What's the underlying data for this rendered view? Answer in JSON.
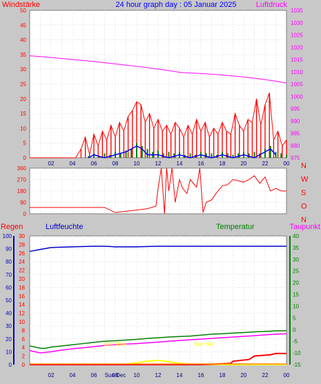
{
  "title": "24 hour graph day : 05 Januar 2025",
  "colors": {
    "bg": "#c8c8c8",
    "plot_bg": "#ffffff",
    "wind": "#ff0000",
    "gust": "#ff0000",
    "wind_avg": "#0000ff",
    "wind_green": "#008000",
    "pressure": "#ff00ff",
    "direction": "#ff0000",
    "rain": "#ff0000",
    "humidity": "#0000cc",
    "temperature": "#008000",
    "dewpoint": "#ff00ff",
    "solar": "#ffff00",
    "sun_label": "#ffff00"
  },
  "hour_labels": [
    "02",
    "04",
    "06",
    "08",
    "10",
    "12",
    "14",
    "16",
    "18",
    "20",
    "22",
    "00"
  ],
  "chart_data": [
    {
      "type": "line",
      "title": "24 hour graph day : 05 Januar 2025",
      "left_label": "Windstärke",
      "right_label": "Luftdruck",
      "y_left_ticks": [
        "0",
        "5",
        "10",
        "15",
        "20",
        "25",
        "30",
        "35",
        "40",
        "45",
        "50"
      ],
      "y_left_lim": [
        0,
        50
      ],
      "y_right_ticks": [
        "975",
        "980",
        "985",
        "990",
        "995",
        "1000",
        "1005",
        "1010",
        "1015",
        "1020",
        "1025",
        "1030",
        "1035"
      ],
      "y_right_lim": [
        975,
        1035
      ],
      "x_hours": [
        0,
        24
      ],
      "series": [
        {
          "name": "Luftdruck",
          "axis": "right",
          "x": [
            0,
            1,
            2,
            3,
            4,
            5,
            6,
            7,
            8,
            9,
            10,
            11,
            12,
            13,
            14,
            15,
            16,
            17,
            18,
            19,
            20,
            21,
            22,
            23,
            24
          ],
          "y": [
            1016.5,
            1016.2,
            1015.8,
            1015.4,
            1015.0,
            1014.6,
            1014.2,
            1013.7,
            1013.2,
            1012.7,
            1012.2,
            1011.7,
            1011.1,
            1010.5,
            1009.8,
            1009.5,
            1009.3,
            1009.0,
            1008.7,
            1008.3,
            1007.9,
            1007.4,
            1006.8,
            1006.2,
            1005.4
          ]
        },
        {
          "name": "Windböen",
          "axis": "left",
          "x": [
            0,
            4.3,
            4.8,
            5.2,
            5.6,
            6.0,
            6.4,
            6.8,
            7.2,
            7.6,
            8.0,
            8.4,
            8.8,
            9.2,
            9.6,
            10.0,
            10.4,
            10.8,
            11.2,
            11.6,
            12.0,
            12.4,
            12.8,
            13.2,
            13.6,
            14.0,
            14.4,
            14.8,
            15.2,
            15.6,
            16.0,
            16.4,
            16.8,
            17.2,
            17.6,
            18.0,
            18.4,
            18.8,
            19.2,
            19.6,
            20.0,
            20.4,
            20.8,
            21.2,
            21.6,
            22.0,
            22.4,
            22.8,
            23.2,
            23.6,
            24.0
          ],
          "y": [
            0,
            0,
            3,
            7,
            1,
            8,
            4,
            9,
            6,
            11,
            7,
            12,
            9,
            14,
            16,
            19,
            18,
            12,
            15,
            10,
            13,
            9,
            11,
            8,
            12,
            10,
            7,
            11,
            8,
            13,
            9,
            12,
            7,
            10,
            8,
            12,
            9,
            8,
            15,
            11,
            9,
            13,
            12,
            20,
            11,
            18,
            22,
            6,
            9,
            4,
            6
          ]
        },
        {
          "name": "Windstärke",
          "axis": "left",
          "x": [
            0,
            5.0,
            5.5,
            6.0,
            6.5,
            7.0,
            7.5,
            8.0,
            8.5,
            9.0,
            9.5,
            10.0,
            10.5,
            11.0,
            11.5,
            12.0,
            12.5,
            13.0,
            13.5,
            14.0,
            14.5,
            15.0,
            15.5,
            16.0,
            16.5,
            17.0,
            17.5,
            18.0,
            18.5,
            19.0,
            19.5,
            20.0,
            20.5,
            21.0,
            21.5,
            22.0,
            22.5,
            23.0,
            23.5,
            24.0
          ],
          "y": [
            0,
            0,
            0.5,
            1.5,
            0.5,
            1.5,
            1,
            2,
            1.5,
            2.5,
            3,
            5,
            4,
            3,
            2,
            2.5,
            1.5,
            2,
            1.5,
            2,
            1,
            1.5,
            1,
            2,
            1.5,
            1.5,
            1,
            2,
            1.5,
            1,
            1.5,
            2,
            1.5,
            2,
            1.5,
            3,
            4,
            2,
            1.5,
            1
          ]
        },
        {
          "name": "Windstärke (Mittel)",
          "axis": "left",
          "x": [
            5.5,
            6.0,
            7.0,
            8.0,
            9.0,
            9.5,
            10.0,
            10.5,
            11.0,
            12.0,
            13.0,
            14.0,
            15.0,
            16.0,
            17.0,
            18.0,
            19.0,
            20.0,
            21.0,
            22.0,
            22.5,
            23.0
          ],
          "y": [
            0,
            1,
            0,
            1,
            2,
            3,
            4,
            3,
            1,
            1,
            0,
            1,
            0,
            1,
            0,
            1,
            0,
            1,
            0,
            2,
            3,
            1
          ]
        }
      ]
    },
    {
      "type": "line",
      "title": "",
      "right_label": "N W S O N",
      "y_left_ticks": [
        "0",
        "90",
        "180",
        "270",
        "360"
      ],
      "y_left_lim": [
        0,
        360
      ],
      "y_right_ticks": [
        "N",
        "W",
        "S",
        "O",
        "N"
      ],
      "x_hours": [
        0,
        24
      ],
      "series": [
        {
          "name": "Windrichtung",
          "x": [
            0,
            7.0,
            8.0,
            9.0,
            10.0,
            11.0,
            11.8,
            12.0,
            12.3,
            12.6,
            12.8,
            13.0,
            13.3,
            13.6,
            14.0,
            14.3,
            14.7,
            15.0,
            15.3,
            15.6,
            15.9,
            16.2,
            16.5,
            17.0,
            17.5,
            18.0,
            18.5,
            19.0,
            19.5,
            20.0,
            20.5,
            21.0,
            21.5,
            22.0,
            22.5,
            23.0,
            23.5,
            24.0
          ],
          "y": [
            50,
            50,
            10,
            20,
            30,
            40,
            60,
            200,
            360,
            0,
            360,
            180,
            360,
            90,
            270,
            200,
            160,
            270,
            240,
            210,
            360,
            10,
            90,
            110,
            170,
            220,
            230,
            270,
            260,
            250,
            270,
            300,
            240,
            290,
            180,
            200,
            180,
            180
          ]
        }
      ]
    },
    {
      "type": "line",
      "title": "",
      "labels": {
        "rain": "Regen",
        "humidity": "Luftfeuchte",
        "temperature": "Temperatur",
        "dewpoint": "Taupunkt"
      },
      "y_humidity_ticks": [
        "0",
        "10",
        "20",
        "30",
        "40",
        "50",
        "60",
        "70",
        "80",
        "90",
        "100"
      ],
      "y_humidity_lim": [
        0,
        100
      ],
      "y_rain_ticks": [
        "0",
        "2",
        "4",
        "6",
        "8",
        "10",
        "12",
        "14",
        "16",
        "18",
        "20",
        "22",
        "24",
        "26",
        "28",
        "30"
      ],
      "y_rain_lim": [
        0,
        30
      ],
      "y_temp_ticks": [
        "40",
        "35",
        "30",
        "25",
        "20",
        "15",
        "10",
        "5",
        "0",
        "-5",
        "-10",
        "-15"
      ],
      "y_temp_lim": [
        -15,
        40
      ],
      "annotations": [
        {
          "text": "Sun Rise",
          "hour": 8.0
        },
        {
          "text": "Sun Set",
          "hour": 16.3
        },
        {
          "text": "Sun Dec",
          "hour": 8.0
        }
      ],
      "series": [
        {
          "name": "Luftfeuchte",
          "axis": "humidity",
          "x": [
            0,
            1,
            2,
            4,
            6,
            7,
            8,
            10,
            12,
            14,
            16,
            18,
            20,
            22,
            24
          ],
          "y": [
            88,
            89.5,
            91,
            91.5,
            92,
            92,
            91.5,
            91.5,
            92,
            92,
            92,
            92,
            92,
            92,
            92
          ]
        },
        {
          "name": "Temperatur",
          "axis": "temp",
          "x": [
            0,
            0.5,
            1,
            1.5,
            2,
            3,
            4,
            5,
            6,
            7,
            8,
            9,
            10,
            11,
            12,
            13,
            14,
            15,
            16,
            17,
            18,
            19,
            20,
            21,
            22,
            23,
            24
          ],
          "y": [
            -7,
            -7.5,
            -8,
            -8,
            -7.5,
            -7,
            -6.5,
            -6,
            -5.5,
            -5,
            -4.8,
            -4.5,
            -4.2,
            -3.8,
            -3.5,
            -3.2,
            -3.0,
            -2.8,
            -2.4,
            -2.0,
            -1.8,
            -1.5,
            -1.3,
            -1.0,
            -0.8,
            -0.6,
            -0.5
          ]
        },
        {
          "name": "Taupunkt",
          "axis": "temp",
          "x": [
            0,
            0.5,
            1,
            2,
            3,
            4,
            5,
            6,
            7,
            8,
            9,
            10,
            11,
            12,
            13,
            14,
            15,
            16,
            17,
            18,
            19,
            20,
            21,
            22,
            23,
            24
          ],
          "y": [
            -9,
            -9.5,
            -10,
            -9.5,
            -8.8,
            -8.2,
            -7.8,
            -7.3,
            -6.8,
            -6.5,
            -6.2,
            -6,
            -5.7,
            -5.4,
            -5.0,
            -4.7,
            -4.4,
            -4.1,
            -3.8,
            -3.5,
            -3.2,
            -2.9,
            -2.6,
            -2.3,
            -2.0,
            -1.8
          ]
        },
        {
          "name": "Regen",
          "axis": "rain",
          "x": [
            0,
            16,
            17,
            18,
            18.8,
            19,
            20.5,
            21,
            22.5,
            23,
            24
          ],
          "y": [
            0,
            0,
            0.1,
            0.2,
            0.3,
            0.8,
            1.2,
            2.0,
            2.3,
            2.6,
            2.6
          ]
        },
        {
          "name": "Sonne",
          "axis": "rain",
          "x": [
            0,
            8,
            9,
            10,
            11,
            12,
            13,
            14,
            15,
            16,
            17,
            24
          ],
          "y": [
            0,
            0,
            0.1,
            0.4,
            0.8,
            1.0,
            0.7,
            0.3,
            0.1,
            0,
            0,
            0
          ]
        }
      ]
    }
  ]
}
